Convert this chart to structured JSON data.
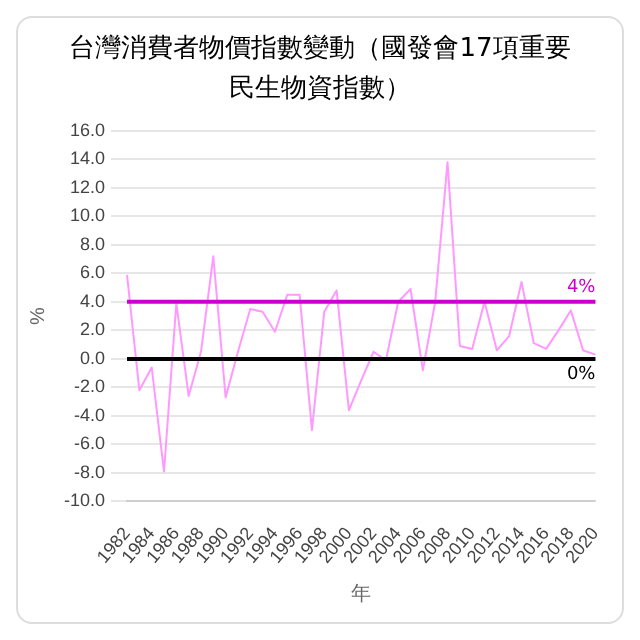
{
  "chart_data": {
    "type": "line",
    "title": "台灣消費者物價指數變動（國發會17項重要民生物資指數）",
    "xlabel": "年",
    "ylabel": "%",
    "categories": [
      "1982",
      null,
      "1984",
      null,
      "1986",
      null,
      "1988",
      null,
      "1990",
      null,
      "1992",
      null,
      "1994",
      null,
      "1996",
      null,
      "1998",
      null,
      "2000",
      null,
      "2002",
      null,
      "2004",
      null,
      "2006",
      null,
      "2008",
      null,
      "2010",
      null,
      "2012",
      null,
      "2014",
      null,
      "2016",
      null,
      "2018",
      null,
      "2020"
    ],
    "series": [
      {
        "color": "#ff99ff",
        "values": [
          5.9,
          -2.2,
          -0.6,
          -7.9,
          3.9,
          -2.6,
          0.5,
          7.2,
          -2.7,
          0.5,
          3.5,
          3.3,
          1.9,
          4.5,
          4.5,
          -5.0,
          3.3,
          4.8,
          -3.6,
          -1.5,
          0.5,
          -0.1,
          4.0,
          4.9,
          -0.8,
          4.0,
          13.8,
          0.9,
          0.7,
          4.0,
          0.6,
          1.6,
          5.4,
          1.1,
          0.7,
          2.0,
          3.4,
          0.6,
          0.3
        ]
      }
    ],
    "ylim": [
      -10,
      16
    ],
    "yticks": [
      {
        "value": -10,
        "label": "-10.0"
      },
      {
        "value": -8,
        "label": "-8.0"
      },
      {
        "value": -6,
        "label": "-6.0"
      },
      {
        "value": -4,
        "label": "-4.0"
      },
      {
        "value": -2,
        "label": "-2.0"
      },
      {
        "value": 0,
        "label": "0.0"
      },
      {
        "value": 2,
        "label": "2.0"
      },
      {
        "value": 4,
        "label": "4.0"
      },
      {
        "value": 6,
        "label": "6.0"
      },
      {
        "value": 8,
        "label": "8.0"
      },
      {
        "value": 10,
        "label": "10.0"
      },
      {
        "value": 12,
        "label": "12.0"
      },
      {
        "value": 14,
        "label": "14.0"
      },
      {
        "value": 16,
        "label": "16.0"
      }
    ],
    "ref_lines": [
      {
        "axis": "y",
        "value": 4,
        "label": "4%",
        "color": "#cc00cc"
      },
      {
        "axis": "y",
        "value": 0,
        "label": "0%",
        "color": "#000000"
      }
    ],
    "grid": "y",
    "legend": false,
    "marker": "none",
    "line_style": "solid"
  }
}
